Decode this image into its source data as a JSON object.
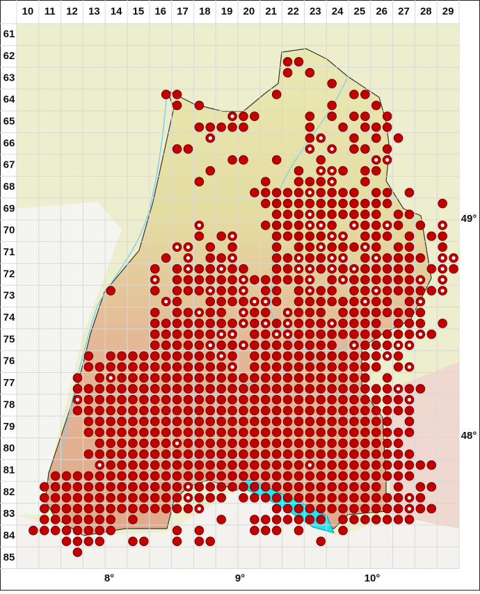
{
  "columns": [
    10,
    11,
    12,
    13,
    14,
    15,
    16,
    17,
    18,
    19,
    20,
    21,
    22,
    23,
    24,
    25,
    26,
    27,
    28,
    29
  ],
  "rows": [
    61,
    62,
    63,
    64,
    65,
    66,
    67,
    68,
    69,
    70,
    71,
    72,
    73,
    74,
    75,
    76,
    77,
    78,
    79,
    80,
    81,
    82,
    83,
    84,
    85
  ],
  "longitudes": [
    "8°",
    "9°",
    "10°"
  ],
  "latitudes": [
    "49°",
    "48°"
  ],
  "quadrant_rows": [
    "........................................",
    "........................................",
    "........................................",
    "........................oo..............",
    "........................o.o.............",
    "............................o...........",
    ".............oo........o......oo........",
    "..............o.o...........o...o.......",
    "...................coo....o.o.oo.o......",
    "................ooooo.....o..o.ooo......",
    ".................c........oc..o.o.o.....",
    "..............oo..........c.c.oo.o......",
    "...................oo..o...o....cc......",
    ".................o.......o.cco.oo.......",
    "................o.....o..oooc..o........",
    ".....................ooooocoooo.oo.o....",
    "......................oooooooooooo....o.",
    ".......................ooocoooooo.oo....",
    "................c.....oooocco cooco.o.c.",
    "................o.oc...ooooocc ooo.o.oo.",
    "..............cc.o.o...o.oocoooco.oo..o.",
    ".............o.c.ooc...oocoocc ocoooo.cc",
    "............o.ocoocoo..ooccococooooo.oco",
    "............c.oooooocoooooc.ocooooooc.c.",
    "........o...o.ooocooc.oo.ocoo.oocoooooc.",
    ".............co..oooocco.oooooocoo.oc...",
    "............o.oocoo.coo.cooo.oooooooo...",
    "............oooooooocococooocoooo.ooo.o.",
    "............oooooocc ooccoooooooooooco..",
    "............ooooocoocoooooooo cooocc....",
    "......o.ooooooooooco ooooooooooooco.....",
    "......oooooooooooooc oooooooooooo.oc....",
    ".....o.ocooooooooooooooooooooooo.o.....",
    ".....ooooooooooooooooooooooooooooocoo...",
    ".....coooooooooooooooooooooooooooooc....",
    ".....ooooooooooooooooooooooooooooooo....",
    "......oooooooooooooooooooooooooooo.o....",
    "......oooooooooooooooooooooooooooooo....",
    ".......ooooooocoooooooooooooooooooo....",
    "......oooooooooooooooooooooooooooooo....",
    ".......coooooooooooooooooocooooooooooo..",
    "...ooooooooooooooooooooooooooooooooo....",
    "..ooooooooooooocooooooooooooooooo.o.oo..",
    "..ooooooooooooocooo.oooooooooooooooco...",
    "..ooooooooooooooc......oooooooooooocoo..",
    "..ooooooo.o.......o..ooooooo.ooooooo....",
    ".oooooooo.....o.o....ooo.o...o..........",
    "....oooo..oo..o.oo.........o............",
    ".....o..................................",
    "........................................"
  ]
}
